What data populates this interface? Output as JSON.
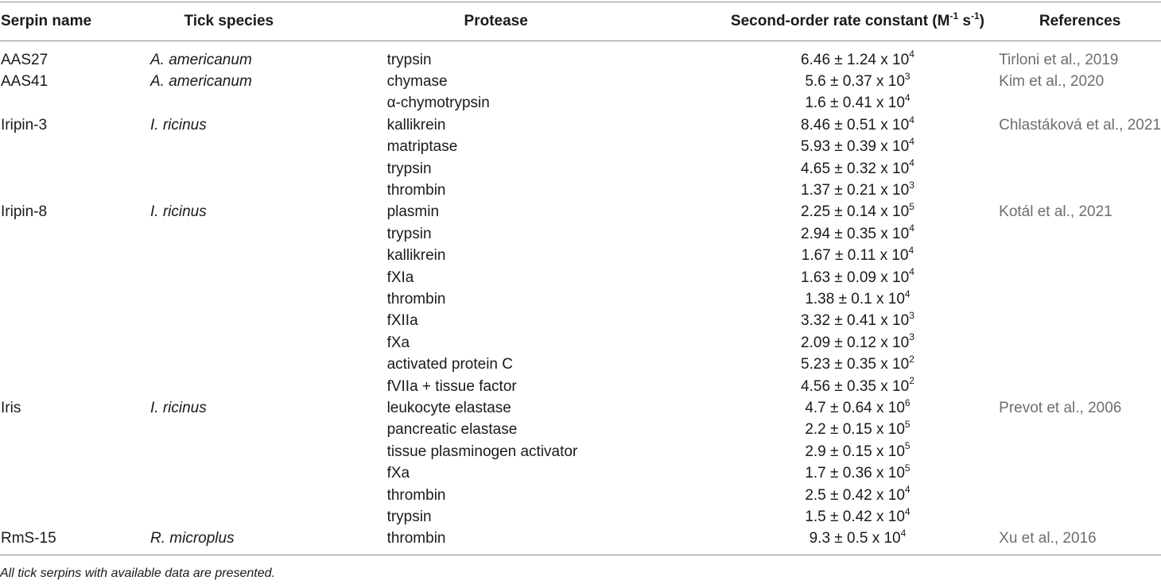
{
  "table": {
    "headers": {
      "serpin": "Serpin name",
      "species": "Tick species",
      "protease": "Protease",
      "rate_prefix": "Second-order rate constant (M",
      "rate_sup1": "-1",
      "rate_mid": " s",
      "rate_sup2": "-1",
      "rate_suffix": ")",
      "references": "References"
    },
    "rows": [
      {
        "serpin": "AAS27",
        "species": "A. americanum",
        "protease": "trypsin",
        "rate": "6.46 ± 1.24 x 10",
        "exp": "4",
        "ref": "Tirloni et al., 2019"
      },
      {
        "serpin": "AAS41",
        "species": "A. americanum",
        "protease": "chymase",
        "rate": "5.6 ± 0.37 x 10",
        "exp": "3",
        "ref": "Kim et al., 2020"
      },
      {
        "serpin": "",
        "species": "",
        "protease": "α-chymotrypsin",
        "rate": "1.6 ± 0.41 x 10",
        "exp": "4",
        "ref": ""
      },
      {
        "serpin": "Iripin-3",
        "species": "I. ricinus",
        "protease": "kallikrein",
        "rate": "8.46 ± 0.51 x 10",
        "exp": "4",
        "ref": "Chlastáková et al., 2021"
      },
      {
        "serpin": "",
        "species": "",
        "protease": "matriptase",
        "rate": "5.93 ± 0.39 x 10",
        "exp": "4",
        "ref": ""
      },
      {
        "serpin": "",
        "species": "",
        "protease": "trypsin",
        "rate": "4.65 ± 0.32 x 10",
        "exp": "4",
        "ref": ""
      },
      {
        "serpin": "",
        "species": "",
        "protease": "thrombin",
        "rate": "1.37 ± 0.21 x 10",
        "exp": "3",
        "ref": ""
      },
      {
        "serpin": "Iripin-8",
        "species": "I. ricinus",
        "protease": "plasmin",
        "rate": "2.25 ± 0.14 x 10",
        "exp": "5",
        "ref": "Kotál et al., 2021"
      },
      {
        "serpin": "",
        "species": "",
        "protease": "trypsin",
        "rate": "2.94 ± 0.35 x 10",
        "exp": "4",
        "ref": ""
      },
      {
        "serpin": "",
        "species": "",
        "protease": "kallikrein",
        "rate": "1.67 ± 0.11 x 10",
        "exp": "4",
        "ref": ""
      },
      {
        "serpin": "",
        "species": "",
        "protease": "fXIa",
        "rate": "1.63 ± 0.09 x 10",
        "exp": "4",
        "ref": ""
      },
      {
        "serpin": "",
        "species": "",
        "protease": "thrombin",
        "rate": "1.38 ± 0.1 x 10",
        "exp": "4",
        "ref": ""
      },
      {
        "serpin": "",
        "species": "",
        "protease": "fXIIa",
        "rate": "3.32 ± 0.41 x 10",
        "exp": "3",
        "ref": ""
      },
      {
        "serpin": "",
        "species": "",
        "protease": "fXa",
        "rate": "2.09 ± 0.12 x 10",
        "exp": "3",
        "ref": ""
      },
      {
        "serpin": "",
        "species": "",
        "protease": "activated protein C",
        "rate": "5.23 ± 0.35 x 10",
        "exp": "2",
        "ref": ""
      },
      {
        "serpin": "",
        "species": "",
        "protease": "fVIIa + tissue factor",
        "rate": "4.56 ± 0.35 x 10",
        "exp": "2",
        "ref": ""
      },
      {
        "serpin": "Iris",
        "species": "I. ricinus",
        "protease": "leukocyte elastase",
        "rate": "4.7 ± 0.64 x 10",
        "exp": "6",
        "ref": "Prevot et al., 2006"
      },
      {
        "serpin": "",
        "species": "",
        "protease": "pancreatic elastase",
        "rate": "2.2 ± 0.15 x 10",
        "exp": "5",
        "ref": ""
      },
      {
        "serpin": "",
        "species": "",
        "protease": "tissue plasminogen activator",
        "rate": "2.9 ± 0.15 x 10",
        "exp": "5",
        "ref": ""
      },
      {
        "serpin": "",
        "species": "",
        "protease": "fXa",
        "rate": "1.7 ± 0.36 x 10",
        "exp": "5",
        "ref": ""
      },
      {
        "serpin": "",
        "species": "",
        "protease": "thrombin",
        "rate": "2.5 ± 0.42 x 10",
        "exp": "4",
        "ref": ""
      },
      {
        "serpin": "",
        "species": "",
        "protease": "trypsin",
        "rate": "1.5 ± 0.42 x 10",
        "exp": "4",
        "ref": ""
      },
      {
        "serpin": "RmS-15",
        "species": "R. microplus",
        "protease": "thrombin",
        "rate": "9.3 ± 0.5 x 10",
        "exp": "4",
        "ref": "Xu et al., 2016"
      }
    ]
  },
  "footnote": "All tick serpins with available data are presented."
}
